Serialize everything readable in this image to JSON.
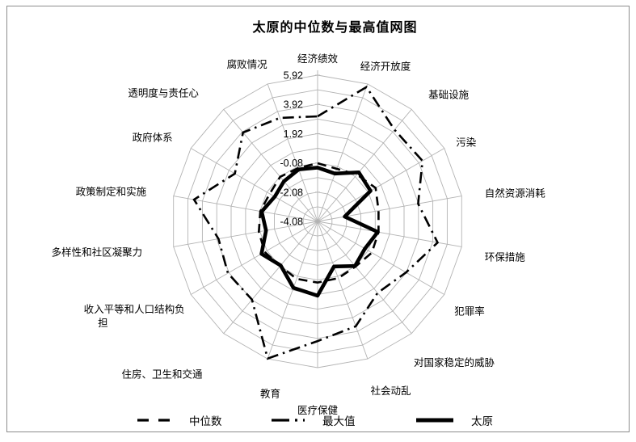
{
  "chart_data": {
    "type": "radar",
    "title": "太原的中位数与最高值网图",
    "categories": [
      "经济绩效",
      "经济开放度",
      "基础设施",
      "污染",
      "自然资源消耗",
      "环保措施",
      "犯罪率",
      "对国家稳定的威胁",
      "社会动乱",
      "医疗保健",
      "教育",
      "住房、卫生和交通",
      "收入平等和人口结构负担",
      "多样性和社区凝聚力",
      "政策制定和实施",
      "政府体系",
      "透明度与责任心",
      "腐败情况"
    ],
    "series": [
      {
        "name": "中位数",
        "style": "dashed",
        "values": [
          -0.1,
          -0.25,
          0.1,
          0.5,
          0.15,
          0.15,
          0.2,
          -0.05,
          0.05,
          0.1,
          0.1,
          -0.1,
          0.1,
          0.0,
          -0.1,
          -0.3,
          -0.1,
          -0.2
        ]
      },
      {
        "name": "最大值",
        "style": "dashdot",
        "values": [
          3.1,
          5.7,
          4.1,
          4.2,
          2.9,
          4.25,
          2.9,
          2.3,
          3.55,
          4.1,
          5.9,
          2.9,
          3.0,
          2.8,
          4.5,
          2.45,
          3.85,
          3.45
        ]
      },
      {
        "name": "太原",
        "style": "solid",
        "values": [
          -0.4,
          -0.6,
          0.3,
          0.1,
          -2.2,
          0.1,
          -0.35,
          -0.1,
          -0.8,
          1.0,
          0.75,
          -0.15,
          0.35,
          -0.5,
          -0.2,
          -0.7,
          -0.5,
          -0.3
        ]
      }
    ],
    "r_axis": {
      "min": -4.08,
      "max": 5.92,
      "step": 1.0,
      "tick_labels": [
        "5.92",
        "3.92",
        "1.92",
        "-0.08",
        "-2.08",
        "-4.08"
      ]
    },
    "legend_position": "bottom",
    "colors": {
      "line": "#000000",
      "grid": "#b3b3b3"
    }
  }
}
